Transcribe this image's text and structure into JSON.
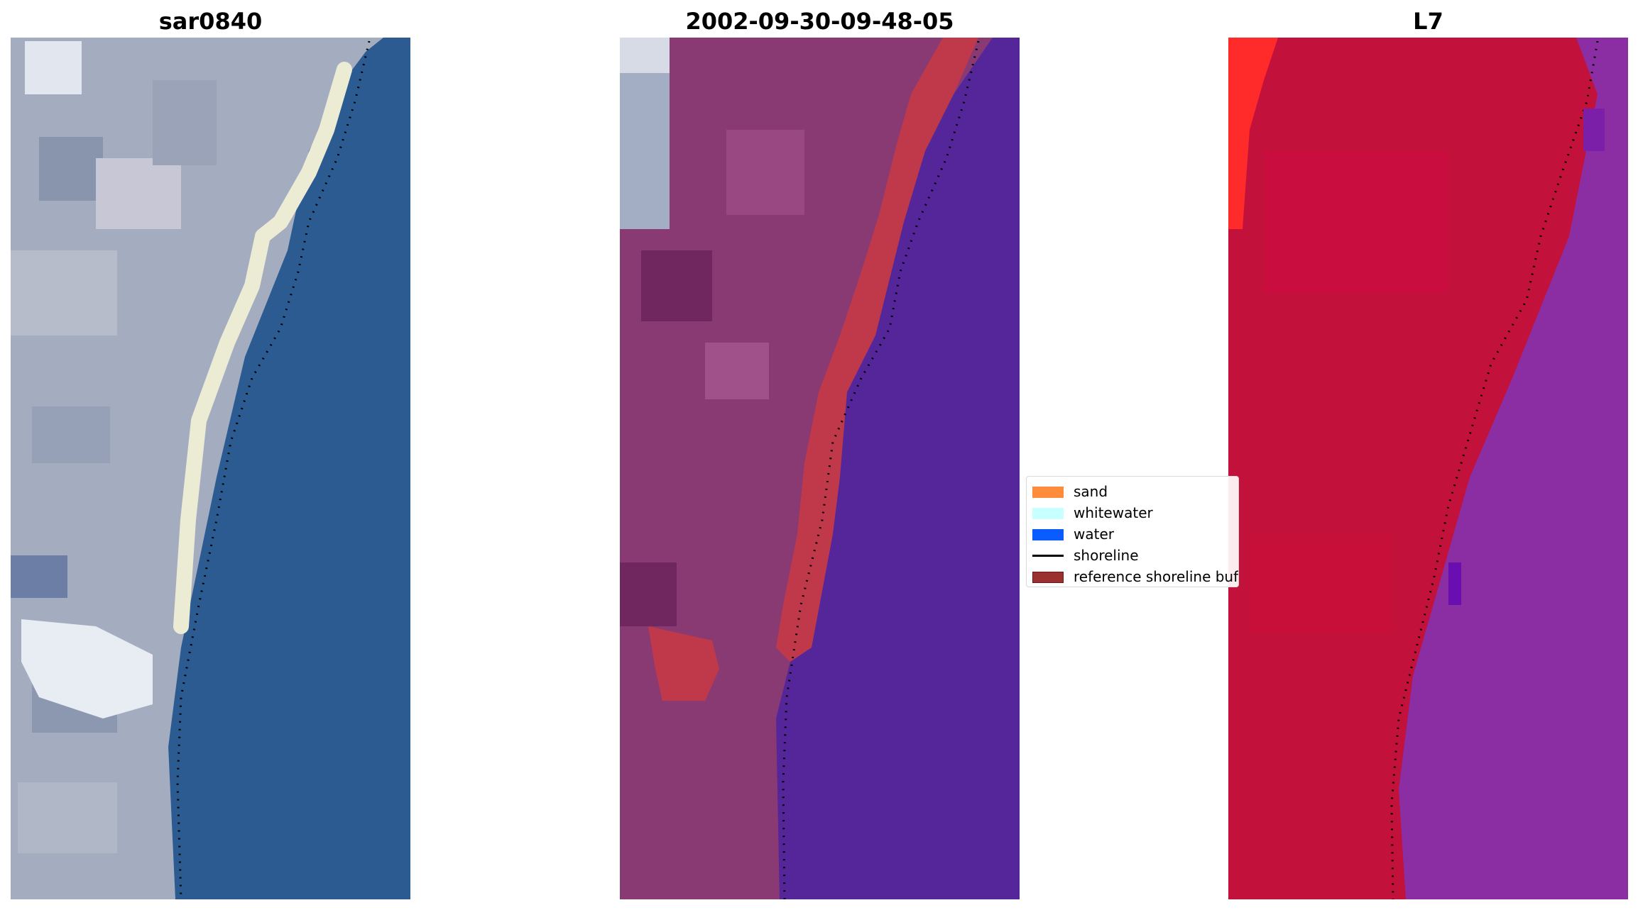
{
  "panels": [
    {
      "title": "sar0840",
      "image": "rgb-satellite-image"
    },
    {
      "title": "2002-09-30-09-48-05",
      "image": "classified-image"
    },
    {
      "title": "L7",
      "image": "false-color-image"
    }
  ],
  "legend": {
    "items": [
      {
        "label": "sand",
        "kind": "patch",
        "color": "#ff8c3a"
      },
      {
        "label": "whitewater",
        "kind": "patch",
        "color": "#c8ffff"
      },
      {
        "label": "water",
        "kind": "patch",
        "color": "#0a5cff"
      },
      {
        "label": "shoreline",
        "kind": "line",
        "color": "#000000"
      },
      {
        "label": "reference shoreline buffer",
        "kind": "patch",
        "color": "#9b3030"
      }
    ]
  },
  "colors": {
    "rgb_land": "#a4adc0",
    "rgb_water": "#2c5b91",
    "rgb_sand": "#ecebd4",
    "class_land": "#8a3a73",
    "class_buffer": "#c0394a",
    "class_water": "#55259a",
    "fc_land": "#c2113a",
    "fc_water": "#8c2ea3"
  }
}
